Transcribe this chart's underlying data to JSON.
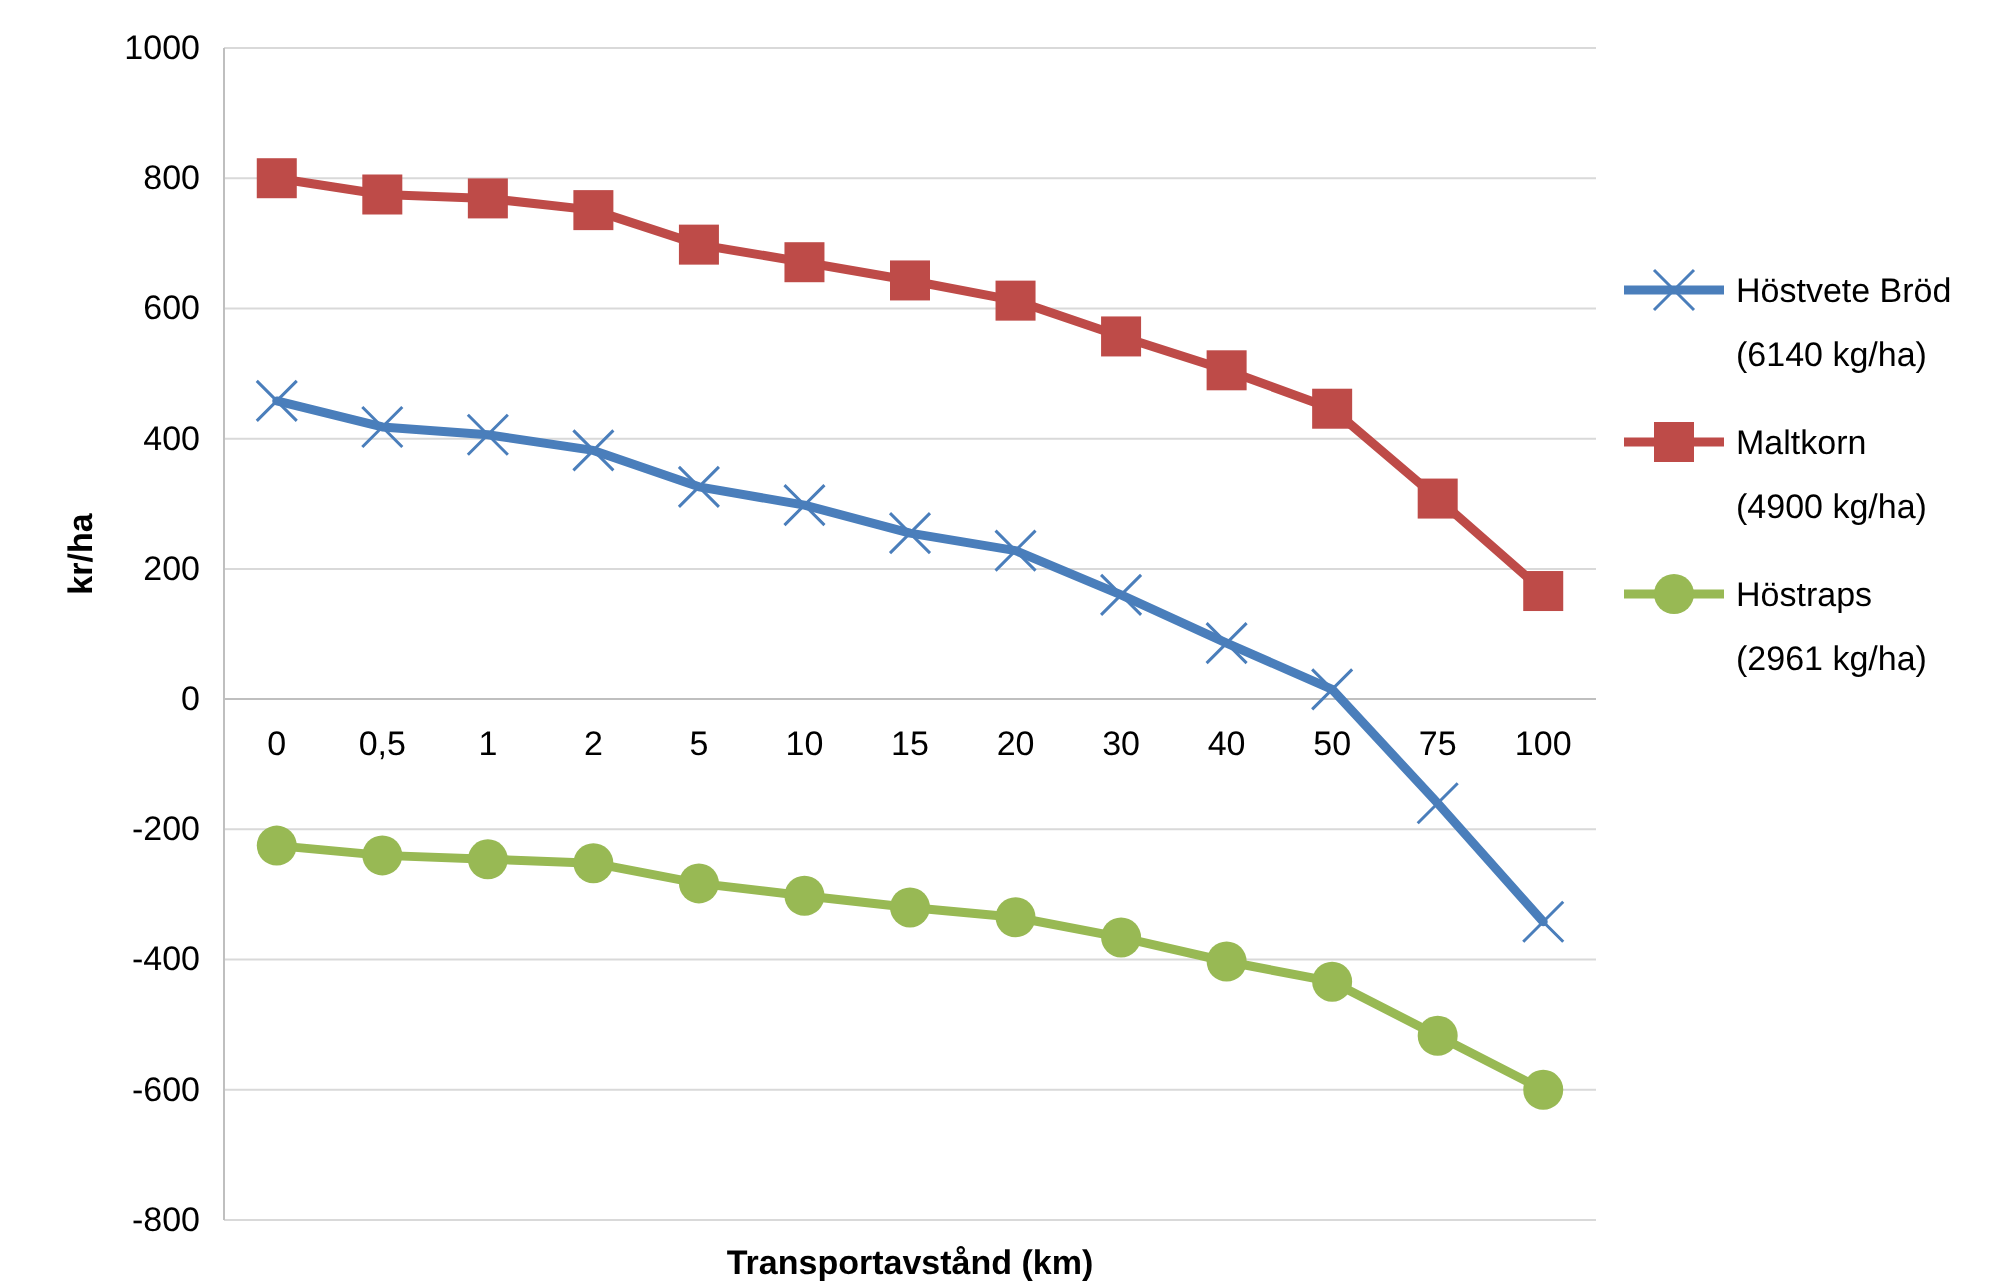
{
  "chart_data": {
    "type": "line",
    "xlabel": "Transportavstånd (km)",
    "ylabel": "kr/ha",
    "categories": [
      "0",
      "0,5",
      "1",
      "2",
      "5",
      "10",
      "15",
      "20",
      "30",
      "40",
      "50",
      "75",
      "100"
    ],
    "ylim": [
      -800,
      1000
    ],
    "yticks": [
      -800,
      -600,
      -400,
      -200,
      0,
      200,
      400,
      600,
      800,
      1000
    ],
    "grid": "y",
    "legend": "right",
    "line_style": "solid",
    "series": [
      {
        "name": "Höstvete Bröd (6140 kg/ha)",
        "color": "#4a7ebb",
        "marker": "cross",
        "values": [
          458,
          418,
          406,
          382,
          326,
          298,
          255,
          228,
          160,
          86,
          15,
          -160,
          -342
        ]
      },
      {
        "name": "Maltkorn (4900 kg/ha)",
        "color": "#be4b48",
        "marker": "square",
        "values": [
          800,
          775,
          769,
          751,
          698,
          671,
          643,
          612,
          557,
          505,
          446,
          308,
          166
        ]
      },
      {
        "name": "Höstraps (2961 kg/ha)",
        "color": "#98b954",
        "marker": "circle",
        "values": [
          -225,
          -240,
          -246,
          -252,
          -283,
          -302,
          -320,
          -335,
          -366,
          -403,
          -434,
          -517,
          -600
        ]
      }
    ]
  }
}
